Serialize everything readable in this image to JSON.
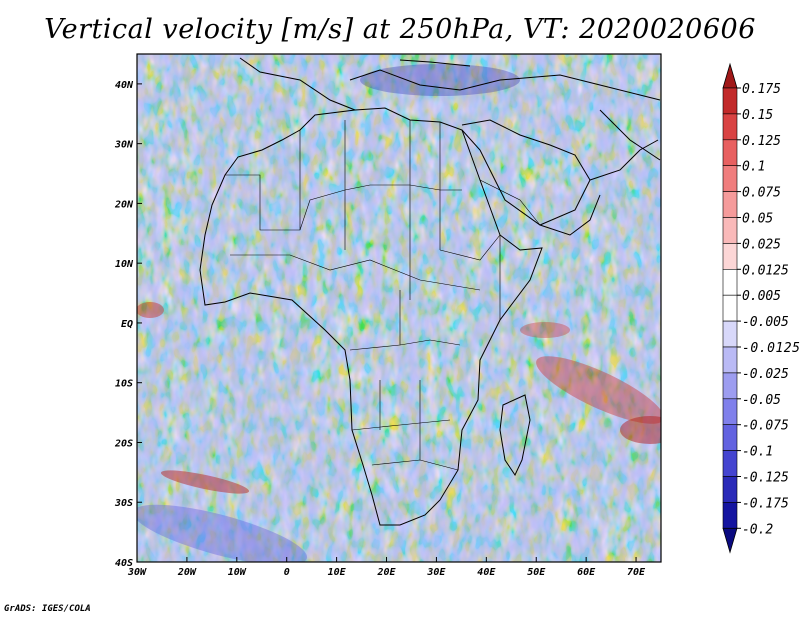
{
  "title": "Vertical velocity [m/s] at 250hPa, VT: 2020020606",
  "footer": "GrADS: IGES/COLA",
  "map": {
    "lon_range": [
      -30,
      75
    ],
    "lat_range": [
      -40,
      45
    ],
    "lon_ticks": [
      "30W",
      "20W",
      "10W",
      "0",
      "10E",
      "20E",
      "30E",
      "40E",
      "50E",
      "60E",
      "70E"
    ],
    "lat_ticks": [
      "40N",
      "30N",
      "20N",
      "10N",
      "EQ",
      "10S",
      "20S",
      "30S",
      "40S"
    ]
  },
  "colorbar": {
    "labels": [
      "0.175",
      "0.15",
      "0.125",
      "0.1",
      "0.075",
      "0.05",
      "0.025",
      "0.0125",
      "0.005",
      "-0.005",
      "-0.0125",
      "-0.025",
      "-0.05",
      "-0.075",
      "-0.1",
      "-0.125",
      "-0.175",
      "-0.2"
    ],
    "colors": [
      "#a01818",
      "#c22a2a",
      "#d94343",
      "#e86060",
      "#f07d7d",
      "#f59b9b",
      "#f9b9b9",
      "#fcd6d6",
      "#ffffff",
      "#ffffff",
      "#d8d8fa",
      "#babaf5",
      "#9d9df0",
      "#8080eb",
      "#6262e0",
      "#4444d0",
      "#2a2ab8",
      "#1414a0",
      "#0a0a80"
    ]
  }
}
